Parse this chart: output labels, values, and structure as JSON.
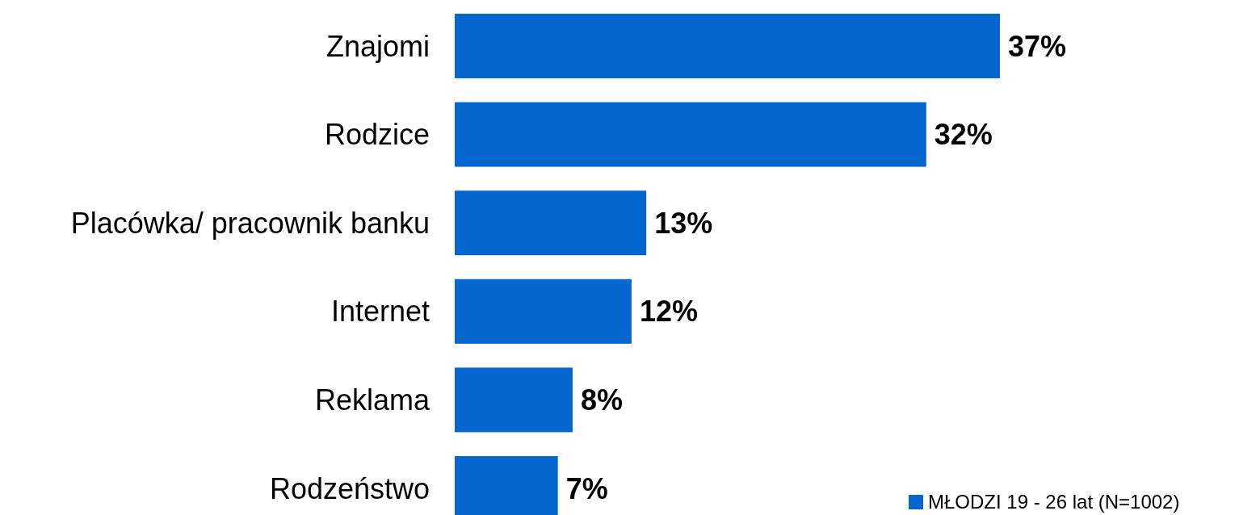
{
  "chart_data": {
    "type": "bar",
    "orientation": "horizontal",
    "categories": [
      "Znajomi",
      "Rodzice",
      "Placówka/ pracownik banku",
      "Internet",
      "Reklama",
      "Rodzeństwo"
    ],
    "series": [
      {
        "name": "MŁODZI 19 - 26 lat (N=1002)",
        "color": "#0566d0",
        "values": [
          37,
          32,
          13,
          12,
          8,
          7
        ],
        "value_labels": [
          "37%",
          "32%",
          "13%",
          "12%",
          "8%",
          "7%"
        ]
      }
    ],
    "legend": "bottom right",
    "tick_labels": "y"
  }
}
